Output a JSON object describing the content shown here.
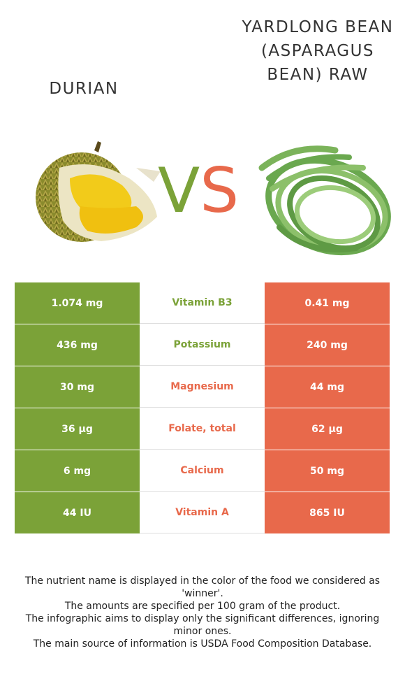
{
  "food_left": {
    "name": "DURIAN"
  },
  "food_right": {
    "name": "YARDLONG BEAN (ASPARAGUS BEAN) RAW"
  },
  "vs": {
    "v": "V",
    "s": "S"
  },
  "colors": {
    "left_winner": "#7ba238",
    "right_winner": "#e8694b"
  },
  "rows": [
    {
      "left": "1.074 mg",
      "nutrient": "Vitamin B3",
      "right": "0.41 mg",
      "winner": "left"
    },
    {
      "left": "436 mg",
      "nutrient": "Potassium",
      "right": "240 mg",
      "winner": "left"
    },
    {
      "left": "30 mg",
      "nutrient": "Magnesium",
      "right": "44 mg",
      "winner": "right"
    },
    {
      "left": "36 µg",
      "nutrient": "Folate, total",
      "right": "62 µg",
      "winner": "right"
    },
    {
      "left": "6 mg",
      "nutrient": "Calcium",
      "right": "50 mg",
      "winner": "right"
    },
    {
      "left": "44 IU",
      "nutrient": "Vitamin A",
      "right": "865 IU",
      "winner": "right"
    }
  ],
  "footnote": [
    "The nutrient name is displayed in the color of the food we considered as 'winner'.",
    "The amounts are specified per 100 gram of the product.",
    "The infographic aims to display only the significant differences, ignoring minor ones.",
    "The main source of information is USDA Food Composition Database."
  ]
}
